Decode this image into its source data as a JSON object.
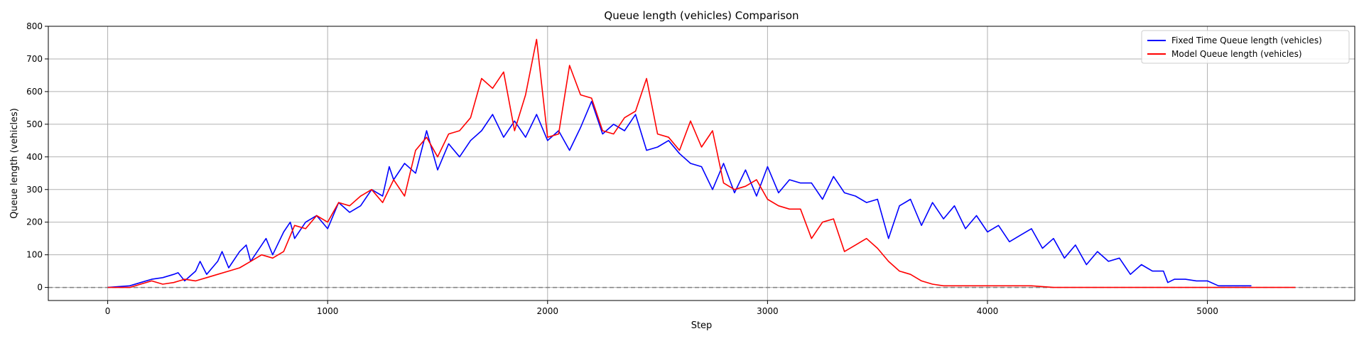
{
  "chart_data": {
    "type": "line",
    "title": "Queue length (vehicles) Comparison",
    "xlabel": "Step",
    "ylabel": "Queue length (vehicles)",
    "xlim": [
      -270,
      5670
    ],
    "ylim": [
      -40,
      800
    ],
    "xticks": [
      0,
      1000,
      2000,
      3000,
      4000,
      5000
    ],
    "yticks": [
      0,
      100,
      200,
      300,
      400,
      500,
      600,
      700,
      800
    ],
    "grid": true,
    "legend_position": "top-right",
    "reference_line": {
      "y": 0,
      "style": "dashed",
      "color": "#808080"
    },
    "series": [
      {
        "name": "Fixed Time Queue length (vehicles)",
        "color": "#0000ff",
        "x": [
          0,
          100,
          150,
          200,
          250,
          300,
          320,
          350,
          400,
          420,
          450,
          500,
          520,
          550,
          600,
          630,
          650,
          700,
          720,
          750,
          800,
          830,
          850,
          900,
          950,
          1000,
          1050,
          1100,
          1150,
          1200,
          1250,
          1280,
          1300,
          1350,
          1400,
          1450,
          1500,
          1550,
          1600,
          1650,
          1700,
          1750,
          1800,
          1850,
          1900,
          1950,
          2000,
          2050,
          2100,
          2150,
          2200,
          2250,
          2300,
          2350,
          2400,
          2450,
          2500,
          2550,
          2600,
          2650,
          2700,
          2750,
          2800,
          2850,
          2900,
          2950,
          3000,
          3050,
          3100,
          3150,
          3200,
          3250,
          3300,
          3350,
          3400,
          3450,
          3500,
          3550,
          3600,
          3650,
          3700,
          3750,
          3800,
          3850,
          3900,
          3950,
          4000,
          4050,
          4100,
          4150,
          4200,
          4250,
          4300,
          4350,
          4400,
          4450,
          4500,
          4550,
          4600,
          4650,
          4700,
          4750,
          4800,
          4820,
          4850,
          4900,
          4950,
          5000,
          5050,
          5100,
          5150,
          5200
        ],
        "y": [
          0,
          5,
          15,
          25,
          30,
          40,
          45,
          20,
          50,
          80,
          40,
          80,
          110,
          60,
          110,
          130,
          80,
          130,
          150,
          100,
          170,
          200,
          150,
          200,
          220,
          180,
          260,
          230,
          250,
          300,
          280,
          370,
          330,
          380,
          350,
          480,
          360,
          440,
          400,
          450,
          480,
          530,
          460,
          510,
          460,
          530,
          450,
          480,
          420,
          490,
          570,
          470,
          500,
          480,
          530,
          420,
          430,
          450,
          410,
          380,
          370,
          300,
          380,
          290,
          360,
          280,
          370,
          290,
          330,
          320,
          320,
          270,
          340,
          290,
          280,
          260,
          270,
          150,
          250,
          270,
          190,
          260,
          210,
          250,
          180,
          220,
          170,
          190,
          140,
          160,
          180,
          120,
          150,
          90,
          130,
          70,
          110,
          80,
          90,
          40,
          70,
          50,
          50,
          15,
          25,
          25,
          20,
          20,
          5,
          5,
          5,
          5
        ]
      },
      {
        "name": "Model Queue length (vehicles)",
        "color": "#ff0000",
        "x": [
          0,
          100,
          150,
          200,
          250,
          300,
          350,
          400,
          450,
          500,
          550,
          600,
          650,
          700,
          750,
          800,
          850,
          900,
          950,
          1000,
          1050,
          1100,
          1150,
          1200,
          1250,
          1300,
          1350,
          1400,
          1450,
          1500,
          1550,
          1600,
          1650,
          1700,
          1750,
          1800,
          1850,
          1900,
          1950,
          2000,
          2050,
          2100,
          2150,
          2200,
          2250,
          2300,
          2350,
          2400,
          2450,
          2500,
          2550,
          2600,
          2650,
          2700,
          2750,
          2800,
          2850,
          2900,
          2950,
          3000,
          3050,
          3100,
          3150,
          3200,
          3250,
          3300,
          3350,
          3400,
          3450,
          3500,
          3550,
          3600,
          3650,
          3700,
          3750,
          3800,
          3850,
          3900,
          4000,
          4100,
          4200,
          4300,
          4500,
          5000,
          5400
        ],
        "y": [
          0,
          0,
          10,
          20,
          10,
          15,
          25,
          20,
          30,
          40,
          50,
          60,
          80,
          100,
          90,
          110,
          190,
          180,
          220,
          200,
          260,
          250,
          280,
          300,
          260,
          330,
          280,
          420,
          460,
          400,
          470,
          480,
          520,
          640,
          610,
          660,
          480,
          590,
          760,
          460,
          470,
          680,
          590,
          580,
          480,
          470,
          520,
          540,
          640,
          470,
          460,
          420,
          510,
          430,
          480,
          320,
          300,
          310,
          330,
          270,
          250,
          240,
          240,
          150,
          200,
          210,
          110,
          130,
          150,
          120,
          80,
          50,
          40,
          20,
          10,
          5,
          5,
          5,
          5,
          5,
          5,
          0,
          0,
          0,
          0
        ]
      }
    ]
  }
}
